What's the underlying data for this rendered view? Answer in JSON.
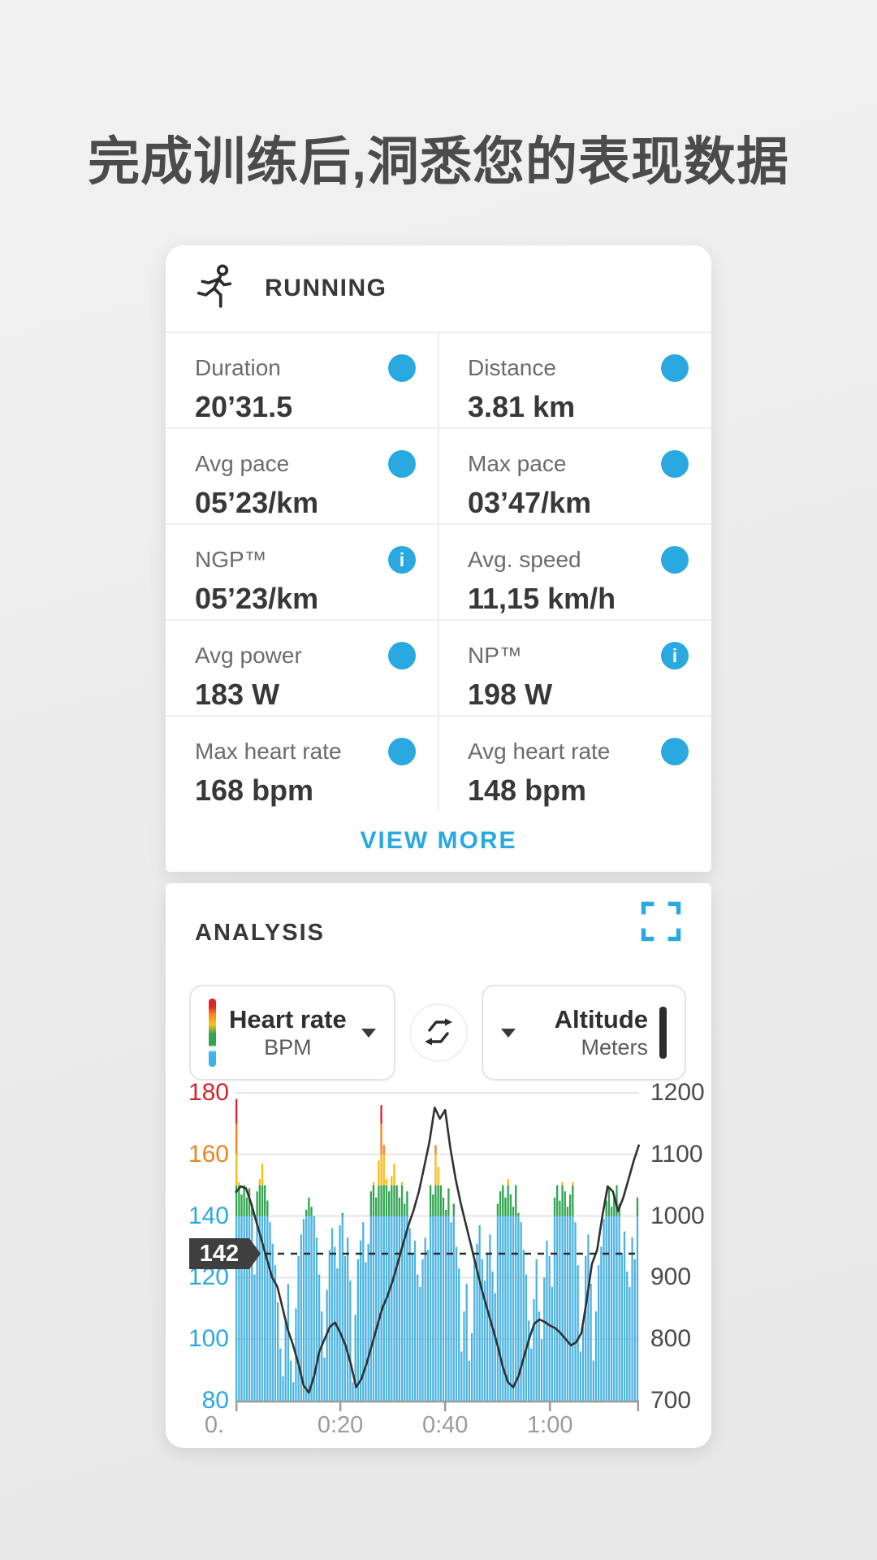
{
  "page": {
    "title": "完成训练后,洞悉您的表现数据"
  },
  "icons": {
    "info_glyph": "i"
  },
  "activity_card": {
    "type_label": "RUNNING",
    "stats": [
      {
        "label": "Duration",
        "value": "20’31.5",
        "info": false
      },
      {
        "label": "Distance",
        "value": "3.81 km",
        "info": false
      },
      {
        "label": "Avg pace",
        "value": "05’23/km",
        "info": false
      },
      {
        "label": "Max pace",
        "value": "03’47/km",
        "info": false
      },
      {
        "label": "NGP™",
        "value": "05’23/km",
        "info": true
      },
      {
        "label": "Avg. speed",
        "value": "11,15 km/h",
        "info": false
      },
      {
        "label": "Avg power",
        "value": "183 W",
        "info": false
      },
      {
        "label": "NP™",
        "value": "198 W",
        "info": true
      },
      {
        "label": "Max heart rate",
        "value": "168 bpm",
        "info": false
      },
      {
        "label": "Avg heart rate",
        "value": "148 bpm",
        "info": false
      }
    ],
    "view_more_label": "VIEW MORE"
  },
  "analysis_card": {
    "title": "ANALYSIS",
    "left_selector": {
      "title": "Heart rate",
      "subtitle": "BPM"
    },
    "right_selector": {
      "title": "Altitude",
      "subtitle": "Meters"
    }
  },
  "chart_data": {
    "type": "bar",
    "x_axis": {
      "unit": "h:mm",
      "range_minutes": [
        0,
        77
      ],
      "tick_minutes": [
        20,
        40,
        60
      ],
      "tick_labels": [
        "0:20",
        "0:40",
        "1:00"
      ],
      "partial_first_label": "0."
    },
    "left_axis": {
      "name": "Heart rate (BPM)",
      "range": [
        80,
        180
      ],
      "ticks": [
        80,
        100,
        120,
        140,
        160,
        180
      ],
      "tick_colors": {
        "180": "#d6232b",
        "160": "#f0831d",
        "default": "#2aa9e0"
      }
    },
    "right_axis": {
      "name": "Altitude (Meters)",
      "range": [
        700,
        1200
      ],
      "ticks": [
        700,
        800,
        900,
        1000,
        1100,
        1200
      ],
      "color": "#4a4a4a"
    },
    "avg_line": {
      "label": "142",
      "value": 142,
      "style": "dashed",
      "color": "#2b2b2b"
    },
    "hr_zones": [
      {
        "upto": 140,
        "color": "#4cb3e2"
      },
      {
        "upto": 150,
        "color": "#2ea54e"
      },
      {
        "upto": 160,
        "color": "#fbba17"
      },
      {
        "upto": 170,
        "color": "#f5821f"
      },
      {
        "upto": 181,
        "color": "#d6232b"
      }
    ],
    "grid": true,
    "legend_position": "none",
    "series": [
      {
        "name": "Heart rate",
        "type": "bar",
        "axis": "left",
        "values": [
          178,
          151,
          147,
          150,
          146,
          149,
          144,
          121,
          148,
          152,
          157,
          150,
          145,
          138,
          131,
          124,
          112,
          97,
          88,
          106,
          118,
          93,
          86,
          110,
          127,
          134,
          139,
          142,
          146,
          143,
          140,
          133,
          121,
          109,
          94,
          116,
          129,
          136,
          130,
          123,
          137,
          141,
          127,
          133,
          119,
          86,
          108,
          126,
          132,
          138,
          125,
          131,
          148,
          151,
          146,
          158,
          176,
          163,
          152,
          148,
          153,
          157,
          150,
          146,
          151,
          144,
          148,
          136,
          128,
          132,
          121,
          117,
          126,
          133,
          129,
          150,
          147,
          163,
          156,
          150,
          146,
          142,
          149,
          138,
          144,
          130,
          123,
          96,
          109,
          118,
          93,
          102,
          125,
          131,
          137,
          126,
          119,
          128,
          134,
          122,
          115,
          144,
          148,
          150,
          146,
          152,
          147,
          143,
          150,
          141,
          138,
          129,
          121,
          106,
          97,
          113,
          126,
          109,
          100,
          120,
          132,
          127,
          117,
          146,
          150,
          145,
          151,
          148,
          143,
          147,
          151,
          138,
          124,
          96,
          104,
          127,
          134,
          118,
          93,
          109,
          124,
          130,
          139,
          145,
          149,
          143,
          147,
          150,
          144,
          128,
          135,
          122,
          117,
          133,
          126,
          146
        ]
      },
      {
        "name": "Altitude",
        "type": "line",
        "axis": "right",
        "color": "#313131",
        "values": [
          1038,
          1048,
          1045,
          1020,
          990,
          960,
          930,
          900,
          885,
          850,
          815,
          790,
          760,
          725,
          713,
          740,
          780,
          800,
          820,
          827,
          810,
          790,
          760,
          722,
          735,
          760,
          790,
          820,
          850,
          870,
          895,
          925,
          955,
          985,
          1010,
          1040,
          1080,
          1120,
          1176,
          1158,
          1172,
          1110,
          1060,
          1020,
          985,
          950,
          915,
          880,
          850,
          820,
          790,
          755,
          730,
          722,
          740,
          770,
          800,
          825,
          832,
          828,
          822,
          818,
          810,
          800,
          790,
          795,
          810,
          863,
          922,
          945,
          1000,
          1048,
          1040,
          1008,
          1030,
          1060,
          1090,
          1116
        ]
      }
    ]
  }
}
